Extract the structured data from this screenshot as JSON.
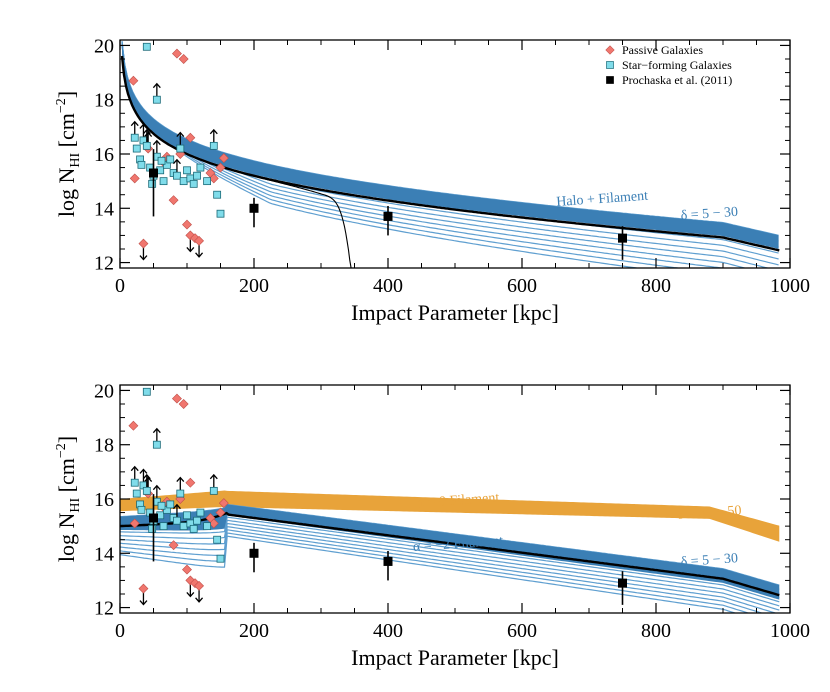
{
  "chart_data": [
    {
      "type": "scatter",
      "panel": "top",
      "xlabel": "Impact Parameter [kpc]",
      "ylabel_main": "log N",
      "ylabel_sub": "HI",
      "ylabel_unit": " [cm",
      "ylabel_sup": "−2",
      "ylabel_close": "]",
      "xlim": [
        0,
        1000
      ],
      "ylim": [
        11.8,
        20.2
      ],
      "xticks": [
        0,
        200,
        400,
        600,
        800,
        1000
      ],
      "yticks": [
        12,
        14,
        16,
        18,
        20
      ],
      "legend": [
        {
          "name": "Passive Galaxies",
          "marker": "diamond",
          "color": "#f0766e"
        },
        {
          "name": "Star−forming Galaxies",
          "marker": "square",
          "color": "#80dcea"
        },
        {
          "name": "Prochaska et al. (2011)",
          "marker": "square",
          "color": "#000000"
        }
      ],
      "annotations": [
        {
          "text": "Halo + Filament",
          "x": 720,
          "y": 14.2,
          "color": "#3b7fb5"
        },
        {
          "text": "δ = 5 − 30",
          "x": 880,
          "y": 13.65,
          "color": "#3b7fb5"
        }
      ],
      "prochaska": [
        {
          "x": 50,
          "y": 15.3,
          "err": 1.6
        },
        {
          "x": 200,
          "y": 14.0,
          "err": 0.7
        },
        {
          "x": 400,
          "y": 13.7,
          "err": 0.7
        },
        {
          "x": 750,
          "y": 12.9,
          "err": 0.8
        }
      ]
    },
    {
      "type": "scatter",
      "panel": "bottom",
      "xlabel": "Impact Parameter [kpc]",
      "ylabel_main": "log N",
      "ylabel_sub": "HI",
      "ylabel_unit": " [cm",
      "ylabel_sup": "−2",
      "ylabel_close": "]",
      "xlim": [
        0,
        1000
      ],
      "ylim": [
        11.8,
        20.2
      ],
      "xticks": [
        0,
        200,
        400,
        600,
        800,
        1000
      ],
      "yticks": [
        12,
        14,
        16,
        18,
        20
      ],
      "annotations": [
        {
          "text": "α = 0 Filament",
          "x": 505,
          "y": 15.8,
          "color": "#e8a33a"
        },
        {
          "text": "δ = 30 − 50",
          "x": 880,
          "y": 15.35,
          "color": "#e8a33a"
        },
        {
          "text": "α = −2 Filament",
          "x": 505,
          "y": 14.2,
          "color": "#3b7fb5"
        },
        {
          "text": "δ = 5 − 30",
          "x": 880,
          "y": 13.6,
          "color": "#3b7fb5"
        }
      ],
      "prochaska": [
        {
          "x": 50,
          "y": 15.3,
          "err": 1.6
        },
        {
          "x": 200,
          "y": 14.0,
          "err": 0.7
        },
        {
          "x": 400,
          "y": 13.7,
          "err": 0.7
        },
        {
          "x": 750,
          "y": 12.9,
          "err": 0.8
        }
      ]
    }
  ],
  "galaxies": {
    "passive": [
      {
        "x": 20,
        "y": 18.7
      },
      {
        "x": 22,
        "y": 15.1
      },
      {
        "x": 35,
        "y": 12.7,
        "lim": "up"
      },
      {
        "x": 42,
        "y": 16.2,
        "lim": "low"
      },
      {
        "x": 85,
        "y": 19.7
      },
      {
        "x": 95,
        "y": 19.5
      },
      {
        "x": 80,
        "y": 14.3
      },
      {
        "x": 100,
        "y": 13.4
      },
      {
        "x": 105,
        "y": 13.0,
        "lim": "up"
      },
      {
        "x": 112,
        "y": 12.9
      },
      {
        "x": 118,
        "y": 12.8,
        "lim": "up"
      },
      {
        "x": 65,
        "y": 15.7
      },
      {
        "x": 90,
        "y": 16.0
      },
      {
        "x": 105,
        "y": 16.6
      },
      {
        "x": 135,
        "y": 15.3
      },
      {
        "x": 150,
        "y": 15.5
      },
      {
        "x": 155,
        "y": 15.85
      },
      {
        "x": 140,
        "y": 15.1
      },
      {
        "x": 70,
        "y": 15.9
      }
    ],
    "starforming": [
      {
        "x": 40,
        "y": 19.95
      },
      {
        "x": 55,
        "y": 18.0,
        "lim": "low"
      },
      {
        "x": 22,
        "y": 16.6,
        "lim": "low"
      },
      {
        "x": 25,
        "y": 16.2
      },
      {
        "x": 30,
        "y": 15.8
      },
      {
        "x": 35,
        "y": 16.5,
        "lim": "low"
      },
      {
        "x": 40,
        "y": 16.3,
        "lim": "low"
      },
      {
        "x": 45,
        "y": 15.5
      },
      {
        "x": 50,
        "y": 15.2
      },
      {
        "x": 55,
        "y": 15.9,
        "lim": "low"
      },
      {
        "x": 60,
        "y": 15.4
      },
      {
        "x": 65,
        "y": 15.0
      },
      {
        "x": 70,
        "y": 15.6
      },
      {
        "x": 75,
        "y": 15.8
      },
      {
        "x": 80,
        "y": 15.3
      },
      {
        "x": 85,
        "y": 15.2,
        "lim": "low"
      },
      {
        "x": 90,
        "y": 16.2,
        "lim": "low"
      },
      {
        "x": 95,
        "y": 15.0
      },
      {
        "x": 100,
        "y": 15.4
      },
      {
        "x": 105,
        "y": 15.1
      },
      {
        "x": 110,
        "y": 14.9
      },
      {
        "x": 115,
        "y": 15.2
      },
      {
        "x": 120,
        "y": 15.5
      },
      {
        "x": 130,
        "y": 15.0
      },
      {
        "x": 140,
        "y": 16.3,
        "lim": "low"
      },
      {
        "x": 145,
        "y": 14.5
      },
      {
        "x": 150,
        "y": 13.8
      },
      {
        "x": 48,
        "y": 14.9
      },
      {
        "x": 32,
        "y": 15.6
      },
      {
        "x": 62,
        "y": 15.75
      }
    ]
  }
}
